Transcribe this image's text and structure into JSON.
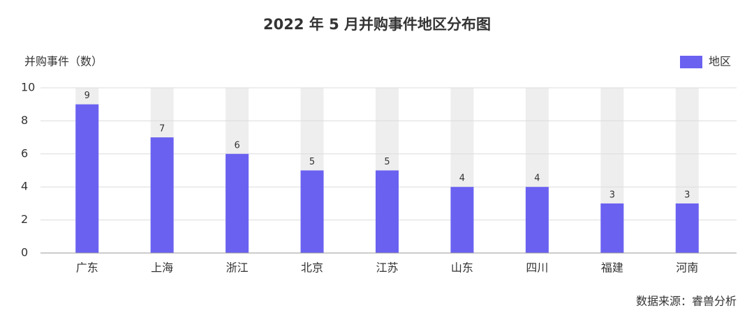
{
  "chart_data": {
    "type": "bar",
    "title": "2022 年 5 月并购事件地区分布图",
    "ylabel": "并购事件（数）",
    "categories": [
      "广东",
      "上海",
      "浙江",
      "北京",
      "江苏",
      "山东",
      "四川",
      "福建",
      "河南"
    ],
    "series": [
      {
        "name": "地区",
        "color": "#6a61f1",
        "values": [
          9,
          7,
          6,
          5,
          5,
          4,
          4,
          3,
          3
        ]
      }
    ],
    "ylim": [
      0,
      10
    ],
    "yticks": [
      0,
      2,
      4,
      6,
      8,
      10
    ],
    "grid": true,
    "legend": "top-right",
    "source": "数据来源：睿兽分析"
  }
}
